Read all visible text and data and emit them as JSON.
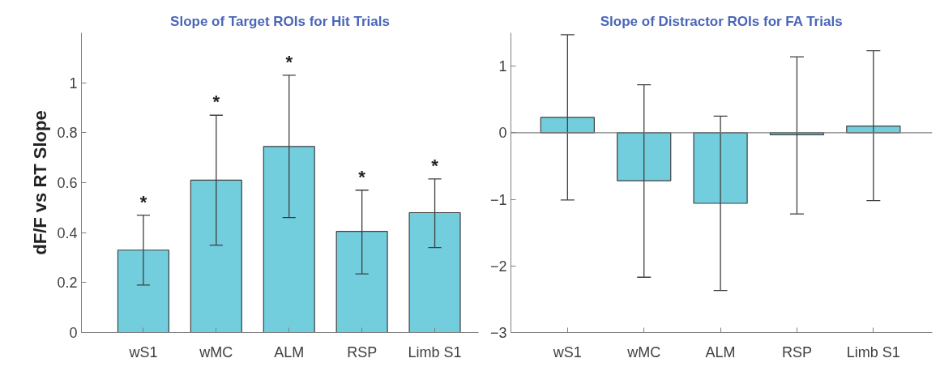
{
  "chart_data": [
    {
      "type": "bar",
      "title": "Slope of Target ROIs for Hit Trials",
      "ylabel": "dF/F vs RT Slope",
      "categories": [
        "wS1",
        "wMC",
        "ALM",
        "RSP",
        "Limb S1"
      ],
      "series": [
        {
          "color": "#72cddd",
          "values": [
            0.33,
            0.61,
            0.745,
            0.405,
            0.48
          ],
          "errors": [
            [
              0.19,
              0.47
            ],
            [
              0.35,
              0.87
            ],
            [
              0.46,
              1.03
            ],
            [
              0.235,
              0.57
            ],
            [
              0.34,
              0.615
            ]
          ]
        }
      ],
      "ylim": [
        0,
        1.2
      ],
      "yticks": [
        0,
        0.2,
        0.4,
        0.6,
        0.8,
        1
      ],
      "annotations": [
        "*",
        "*",
        "*",
        "*",
        "*"
      ]
    },
    {
      "type": "bar",
      "title": "Slope of Distractor ROIs for FA Trials",
      "categories": [
        "wS1",
        "wMC",
        "ALM",
        "RSP",
        "Limb S1"
      ],
      "series": [
        {
          "color": "#72cddd",
          "values": [
            0.23,
            -0.72,
            -1.06,
            -0.03,
            0.1
          ],
          "errors": [
            [
              -1.01,
              1.47
            ],
            [
              -2.17,
              0.72
            ],
            [
              -2.37,
              0.25
            ],
            [
              -1.22,
              1.14
            ],
            [
              -1.02,
              1.23
            ]
          ]
        }
      ],
      "ylim": [
        -3,
        1.5
      ],
      "yticks": [
        -3,
        -2,
        -1,
        0,
        1
      ],
      "ref_lines": [
        {
          "axis": "y",
          "value": 0
        }
      ]
    }
  ]
}
